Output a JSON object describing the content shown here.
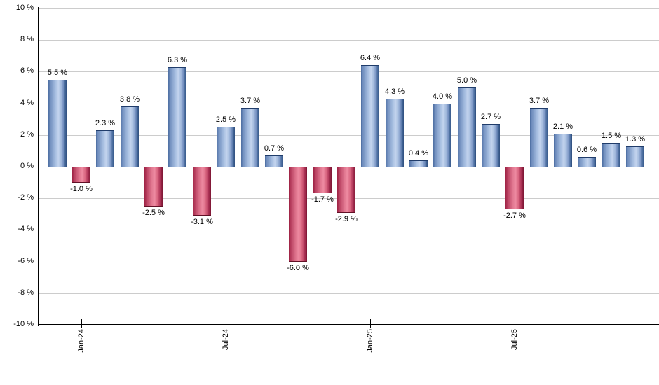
{
  "chart_data": {
    "type": "bar",
    "title": "",
    "unit": "%",
    "values": [
      5.5,
      -1.0,
      2.3,
      3.8,
      -2.5,
      6.3,
      -3.1,
      2.5,
      3.7,
      0.7,
      -6.0,
      -1.7,
      -2.9,
      6.4,
      4.3,
      0.4,
      4.0,
      5.0,
      2.7,
      -2.7,
      3.7,
      2.1,
      0.6,
      1.5,
      1.3
    ],
    "bar_labels": [
      "5.5 %",
      "-1.0 %",
      "2.3 %",
      "3.8 %",
      "-2.5 %",
      "6.3 %",
      "-3.1 %",
      "2.5 %",
      "3.7 %",
      "0.7 %",
      "-6.0 %",
      "-1.7 %",
      "-2.9 %",
      "6.4 %",
      "4.3 %",
      "0.4 %",
      "4.0 %",
      "5.0 %",
      "2.7 %",
      "-2.7 %",
      "3.7 %",
      "2.1 %",
      "0.6 %",
      "1.5 %",
      "1.3 %"
    ],
    "y_ticks": [
      "10 %",
      "8 %",
      "6 %",
      "4 %",
      "2 %",
      "0 %",
      "-2 %",
      "-4 %",
      "-6 %",
      "-8 %",
      "-10 %"
    ],
    "y_tick_values": [
      10,
      8,
      6,
      4,
      2,
      0,
      -2,
      -4,
      -6,
      -8,
      -10
    ],
    "ylim": [
      -10,
      10
    ],
    "x_ticks": [
      {
        "label": "Jan-24",
        "bar_index": 1
      },
      {
        "label": "Jul-24",
        "bar_index": 7
      },
      {
        "label": "Jan-25",
        "bar_index": 13
      },
      {
        "label": "Jul-25",
        "bar_index": 19
      }
    ],
    "grid": true,
    "legend": "none",
    "colors": {
      "positive_bar_light": "#c3d4ee",
      "positive_bar_dark": "#2e4e7e",
      "negative_bar_light": "#ee8ba2",
      "negative_bar_dark": "#7c1533",
      "gridline": "#cccccc",
      "axis": "#000000",
      "label_text": "#000000",
      "background": "#ffffff"
    }
  }
}
